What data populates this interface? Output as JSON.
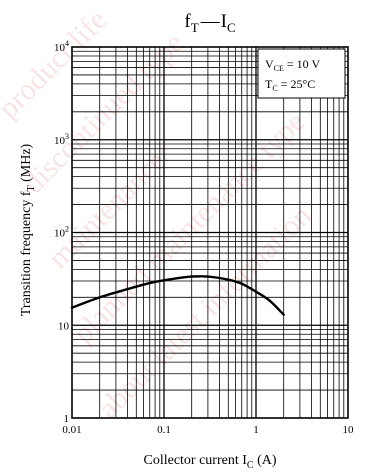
{
  "chart_data": {
    "type": "line",
    "title": {
      "main": "f",
      "main_sub": "T",
      "dash": "—",
      "second": "I",
      "second_sub": "C"
    },
    "xlabel": {
      "text": "Collector current  I",
      "sub": "C",
      "unit": "  (A)"
    },
    "ylabel": {
      "text": "Transition frequency  f",
      "sub": "T",
      "unit": "  (MHz)"
    },
    "x_scale": "log",
    "y_scale": "log",
    "xlim": [
      0.01,
      10
    ],
    "ylim": [
      1,
      10000
    ],
    "x_ticks": [
      {
        "value": 0.01,
        "label": "0.01"
      },
      {
        "value": 0.1,
        "label": "0.1"
      },
      {
        "value": 1,
        "label": "1"
      },
      {
        "value": 10,
        "label": "10"
      }
    ],
    "y_ticks": [
      {
        "value": 1,
        "base": "1",
        "exp": ""
      },
      {
        "value": 10,
        "base": "10",
        "exp": ""
      },
      {
        "value": 100,
        "base": "10",
        "exp": "2"
      },
      {
        "value": 1000,
        "base": "10",
        "exp": "3"
      },
      {
        "value": 10000,
        "base": "10",
        "exp": "4"
      }
    ],
    "grid": true,
    "conditions": [
      {
        "main": "V",
        "sub": "CE",
        "rest": " = 10 V"
      },
      {
        "main": "T",
        "sub": "C",
        "rest": " = 25°C"
      }
    ],
    "conditions_position": "top-right",
    "series": [
      {
        "x": [
          0.01,
          0.02,
          0.04,
          0.07,
          0.1,
          0.15,
          0.2,
          0.3,
          0.5,
          0.7,
          1.0,
          1.4,
          2.0
        ],
        "y": [
          15.5,
          20,
          24.5,
          28.5,
          30.5,
          32.5,
          33.5,
          33.5,
          31,
          28,
          23,
          18.5,
          13
        ]
      }
    ],
    "watermark_lines": [
      "product life",
      "discontinued type",
      "maintenance/",
      "planned maintenance type",
      "about latest information"
    ]
  }
}
